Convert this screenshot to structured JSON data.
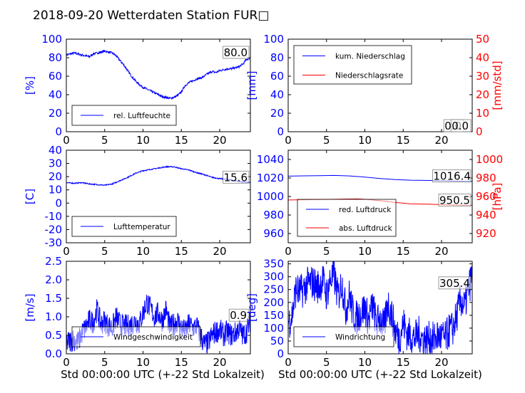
{
  "title": "2018-09-20 Wetterdaten Station FUR□",
  "colors": {
    "primary": "#0000ff",
    "secondary": "#ff0000",
    "axis": "#000000",
    "label_box": "#808080"
  },
  "xlabel": "Std 00:00:00 UTC (+-22 Std Lokalzeit)",
  "chart_data": [
    {
      "id": "humidity",
      "type": "line",
      "ylabel": "[%]",
      "xlim": [
        0,
        24
      ],
      "ylim": [
        0,
        100
      ],
      "xticks": [
        0,
        5,
        10,
        15,
        20
      ],
      "yticks": [
        0,
        20,
        40,
        60,
        80,
        100
      ],
      "series": [
        {
          "name": "rel. Luftfeuchte",
          "color": "#0000ff",
          "x": [
            0,
            0.5,
            1,
            1.5,
            2,
            2.5,
            3,
            3.5,
            4,
            4.5,
            5,
            5.5,
            6,
            6.5,
            7,
            7.5,
            8,
            8.5,
            9,
            9.5,
            10,
            10.5,
            11,
            11.5,
            12,
            12.5,
            13,
            13.5,
            14,
            14.5,
            15,
            15.5,
            16,
            16.5,
            17,
            17.5,
            18,
            18.5,
            19,
            19.5,
            20,
            20.5,
            21,
            21.5,
            22,
            22.5,
            23,
            23.5,
            24
          ],
          "y": [
            83,
            84,
            85,
            84,
            83,
            82,
            81,
            84,
            85,
            86,
            87,
            86,
            85,
            82,
            77,
            72,
            66,
            60,
            55,
            51,
            48,
            46,
            44,
            42,
            40,
            38,
            37,
            36,
            37,
            39,
            43,
            50,
            53,
            55,
            57,
            58,
            60,
            63,
            65,
            64,
            66,
            67,
            68,
            68,
            69,
            70,
            73,
            78,
            80
          ],
          "noise": 1.2
        }
      ],
      "value_label": "80.0",
      "legend_position": "lower-left"
    },
    {
      "id": "precipitation",
      "type": "line",
      "ylabel": "[mm]",
      "ylabel2": "[mm/std]",
      "xlim": [
        0,
        24
      ],
      "ylim": [
        0,
        100
      ],
      "ylim2": [
        0,
        50
      ],
      "xticks": [
        0,
        5,
        10,
        15,
        20
      ],
      "yticks": [
        0,
        20,
        40,
        60,
        80,
        100
      ],
      "yticks2": [
        0,
        10,
        20,
        30,
        40,
        50
      ],
      "series": [
        {
          "name": "kum. Niederschlag",
          "color": "#0000ff",
          "x": [
            0,
            24
          ],
          "y": [
            0,
            0
          ],
          "noise": 0
        },
        {
          "name": "Niederschlagsrate",
          "color": "#ff0000",
          "axis": "right",
          "x": [
            0,
            24
          ],
          "y": [
            0,
            0
          ],
          "noise": 0
        }
      ],
      "value_labels": [
        "0.0",
        "0.0"
      ],
      "legend_position": "upper-left"
    },
    {
      "id": "temperature",
      "type": "line",
      "ylabel": "[C]",
      "xlim": [
        0,
        24
      ],
      "ylim": [
        -30,
        40
      ],
      "xticks": [
        0,
        5,
        10,
        15,
        20
      ],
      "yticks": [
        -30,
        -20,
        -10,
        0,
        10,
        20,
        30,
        40
      ],
      "series": [
        {
          "name": "Lufttemperatur",
          "color": "#0000ff",
          "x": [
            0,
            1,
            2,
            3,
            4,
            5,
            6,
            7,
            8,
            9,
            10,
            11,
            12,
            13,
            14,
            15,
            16,
            17,
            18,
            19,
            20,
            21,
            22,
            23,
            24
          ],
          "y": [
            15.5,
            15,
            15.5,
            14.5,
            14,
            13.5,
            14.5,
            17,
            19.5,
            22.5,
            24.5,
            25.5,
            26.5,
            27.5,
            27.5,
            26,
            25,
            23,
            21.5,
            19.5,
            18.5,
            18,
            17,
            16,
            15.6
          ],
          "noise": 0.4
        }
      ],
      "value_label": "15.6",
      "legend_position": "lower-left"
    },
    {
      "id": "pressure",
      "type": "line",
      "ylabel2": "[hPa]",
      "xlim": [
        0,
        24
      ],
      "ylim": [
        950,
        1050
      ],
      "ylim2": [
        910,
        1010
      ],
      "xticks": [
        0,
        5,
        10,
        15,
        20
      ],
      "yticks": [
        960,
        980,
        1000,
        1020,
        1040
      ],
      "yticks2": [
        920,
        940,
        960,
        980,
        1000
      ],
      "series": [
        {
          "name": "red. Luftdruck",
          "color": "#0000ff",
          "x": [
            0,
            2,
            4,
            6,
            8,
            10,
            12,
            14,
            16,
            18,
            20,
            22,
            24
          ],
          "y": [
            1022,
            1022.3,
            1022.5,
            1022.8,
            1022.2,
            1021,
            1019.5,
            1018.2,
            1017.6,
            1017.4,
            1017,
            1016.6,
            1016.4
          ],
          "noise": 0
        },
        {
          "name": "abs. Luftdruck",
          "color": "#ff0000",
          "axis": "right",
          "x": [
            0,
            2,
            4,
            6,
            8,
            9,
            10,
            12,
            14,
            16,
            18,
            20,
            22,
            24
          ],
          "y": [
            956.2,
            956.5,
            956.8,
            957,
            957.3,
            957.4,
            957,
            955.5,
            953.5,
            952,
            951.8,
            951.2,
            950.8,
            950.5
          ],
          "noise": 0
        }
      ],
      "value_labels": [
        "1016.4",
        "950.5"
      ],
      "legend_position": "lower-left"
    },
    {
      "id": "windspeed",
      "type": "line",
      "ylabel": "[m/s]",
      "xlim": [
        0,
        24
      ],
      "ylim": [
        0,
        2.5
      ],
      "xticks": [
        0,
        5,
        10,
        15,
        20
      ],
      "yticks": [
        0.0,
        0.5,
        1.0,
        1.5,
        2.0,
        2.5
      ],
      "series": [
        {
          "name": "Windgeschwindigkeit",
          "color": "#0000ff",
          "x": [
            0,
            0.5,
            1,
            1.5,
            2,
            2.5,
            3,
            3.5,
            4,
            4.5,
            5,
            5.5,
            6,
            6.5,
            7,
            7.5,
            8,
            8.5,
            9,
            9.5,
            10,
            10.5,
            11,
            11.5,
            12,
            12.5,
            13,
            13.5,
            14,
            14.5,
            15,
            15.5,
            16,
            16.5,
            17,
            17.5,
            18,
            18.5,
            19,
            19.5,
            20,
            20.5,
            21,
            21.5,
            22,
            22.5,
            23,
            23.5,
            24
          ],
          "y": [
            0.3,
            0.35,
            0.4,
            0.3,
            0.55,
            0.7,
            0.9,
            0.85,
            1.2,
            0.8,
            0.9,
            0.75,
            0.7,
            1.0,
            0.8,
            0.75,
            0.75,
            0.8,
            0.9,
            0.8,
            1.1,
            1.4,
            1.2,
            1.0,
            1.1,
            0.9,
            1.2,
            0.7,
            0.8,
            0.9,
            0.7,
            0.6,
            0.8,
            0.7,
            0.75,
            0.5,
            0.25,
            0.3,
            0.5,
            0.6,
            0.65,
            0.5,
            0.6,
            0.5,
            0.55,
            0.7,
            0.5,
            0.6,
            0.9
          ],
          "noise": 0.32
        }
      ],
      "value_label": "0.9",
      "legend_position": "lower-center"
    },
    {
      "id": "winddirection",
      "type": "line",
      "ylabel": "[deg]",
      "xlim": [
        0,
        24
      ],
      "ylim": [
        0,
        360
      ],
      "xticks": [
        0,
        5,
        10,
        15,
        20
      ],
      "yticks": [
        0,
        50,
        100,
        150,
        200,
        250,
        300,
        350
      ],
      "series": [
        {
          "name": "Windrichtung",
          "color": "#0000ff",
          "x": [
            0,
            0.5,
            1,
            1.5,
            2,
            2.5,
            3,
            3.5,
            4,
            4.5,
            5,
            5.5,
            6,
            6.5,
            7,
            7.5,
            8,
            8.5,
            9,
            9.5,
            10,
            10.5,
            11,
            11.5,
            12,
            12.5,
            13,
            13.5,
            14,
            14.5,
            15,
            15.5,
            16,
            16.5,
            17,
            17.5,
            18,
            18.5,
            19,
            19.5,
            20,
            20.5,
            21,
            21.5,
            22,
            22.5,
            23,
            23.5,
            24
          ],
          "y": [
            120,
            150,
            250,
            240,
            250,
            270,
            280,
            270,
            260,
            290,
            230,
            290,
            300,
            220,
            280,
            170,
            230,
            150,
            140,
            160,
            180,
            130,
            190,
            120,
            140,
            100,
            200,
            150,
            90,
            60,
            120,
            80,
            70,
            60,
            80,
            60,
            55,
            60,
            55,
            70,
            65,
            60,
            90,
            100,
            150,
            210,
            180,
            250,
            305
          ],
          "noise": 70
        }
      ],
      "value_label": "305.4",
      "legend_position": "lower-left"
    }
  ]
}
